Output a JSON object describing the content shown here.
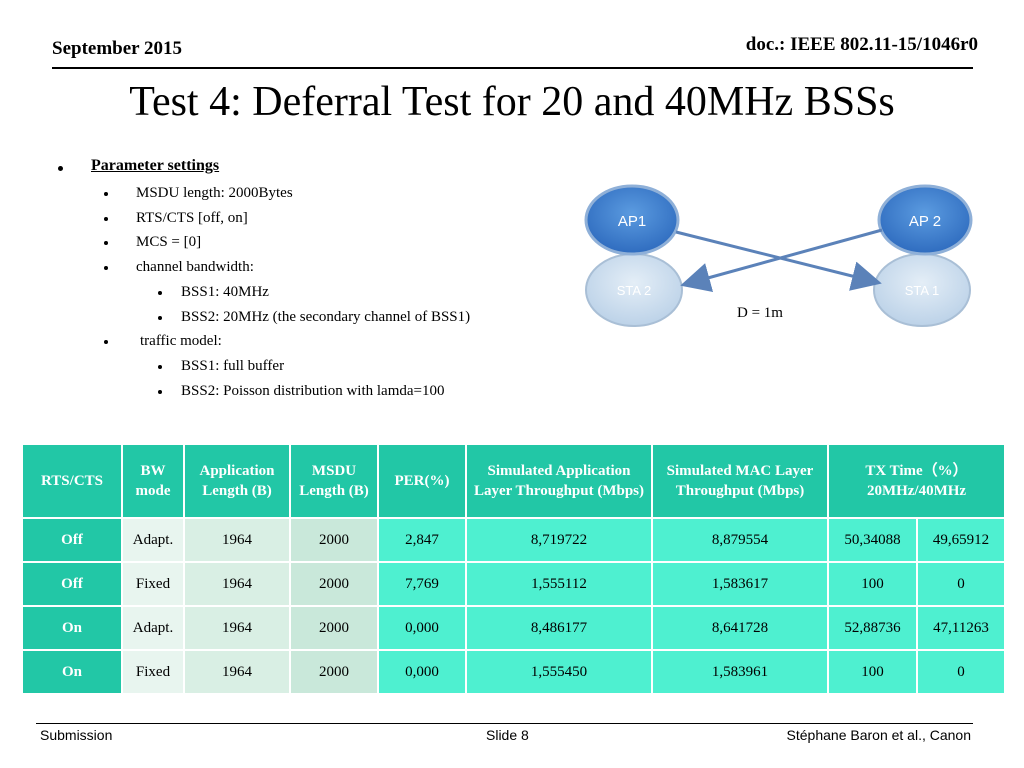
{
  "header": {
    "date": "September 2015",
    "doc": "doc.: IEEE 802.11-15/1046r0"
  },
  "title": "Test 4: Deferral Test for 20 and 40MHz BSSs",
  "params": {
    "heading": "Parameter settings",
    "msdu": "MSDU length: 2000Bytes",
    "rts": "RTS/CTS [off, on]",
    "mcs": "MCS = [0]",
    "bw": "channel bandwidth:",
    "bss1_bw": "BSS1: 40MHz",
    "bss2_bw": "BSS2: 20MHz (the secondary channel of BSS1)",
    "traffic": "traffic model:",
    "bss1_tr": "BSS1: full buffer",
    "bss2_tr": "BSS2: Poisson distribution with lamda=100"
  },
  "diagram": {
    "ap1": "AP1",
    "ap2": "AP 2",
    "sta1": "STA 1",
    "sta2": "STA 2",
    "distance": "D = 1m",
    "colors": {
      "ap": "#3f7fce",
      "sta": "#cfe0ef",
      "arrow": "#5b82b9"
    }
  },
  "table": {
    "headers": {
      "rts": "RTS/CTS",
      "bw": "BW mode",
      "app": "Application Length (B)",
      "msdu": "MSDU Length (B)",
      "per": "PER(%)",
      "sim_app": "Simulated Application Layer Throughput (Mbps)",
      "sim_mac": "Simulated MAC Layer Throughput (Mbps)",
      "tx": "TX Time（%）20MHz/40MHz"
    },
    "rows": [
      {
        "rts": "Off",
        "bw": "Adapt.",
        "app": "1964",
        "msdu": "2000",
        "per": "2,847",
        "sim_app": "8,719722",
        "sim_mac": "8,879554",
        "tx20": "50,34088",
        "tx40": "49,65912"
      },
      {
        "rts": "Off",
        "bw": "Fixed",
        "app": "1964",
        "msdu": "2000",
        "per": "7,769",
        "sim_app": "1,555112",
        "sim_mac": "1,583617",
        "tx20": "100",
        "tx40": "0"
      },
      {
        "rts": "On",
        "bw": "Adapt.",
        "app": "1964",
        "msdu": "2000",
        "per": "0,000",
        "sim_app": "8,486177",
        "sim_mac": "8,641728",
        "tx20": "52,88736",
        "tx40": "47,11263"
      },
      {
        "rts": "On",
        "bw": "Fixed",
        "app": "1964",
        "msdu": "2000",
        "per": "0,000",
        "sim_app": "1,555450",
        "sim_mac": "1,583961",
        "tx20": "100",
        "tx40": "0"
      }
    ],
    "colors": {
      "header": "#22c7a6",
      "cyan": "#4ef0d0"
    }
  },
  "footer": {
    "left": "Submission",
    "center": "Slide 8",
    "right": "Stéphane Baron et al., Canon"
  }
}
